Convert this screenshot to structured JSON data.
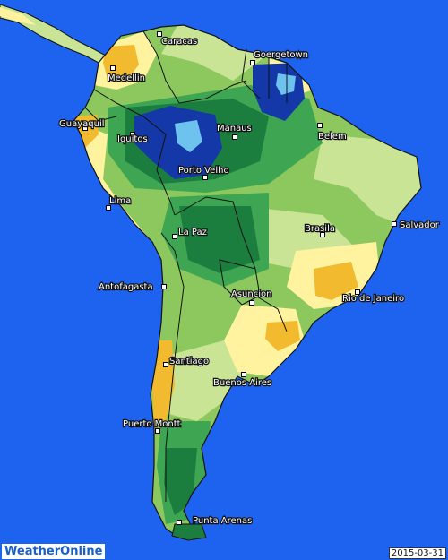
{
  "map": {
    "colors": {
      "ocean": "#1e63f0",
      "very_dry": "#f2bb2f",
      "dry": "#fff3a0",
      "normal_light": "#c8e494",
      "normal": "#8cc85e",
      "wet": "#3ea652",
      "very_wet": "#1b7e3f",
      "extreme_wet": "#1438a8",
      "extreme_wet_core": "#6ec2ee"
    },
    "cities": [
      {
        "id": "caracas",
        "name": "Caracas"
      },
      {
        "id": "medellin",
        "name": "Medellin"
      },
      {
        "id": "goergetown",
        "name": "Goergetown"
      },
      {
        "id": "guayaquil",
        "name": "Guayaquil"
      },
      {
        "id": "iquitos",
        "name": "Iquitos"
      },
      {
        "id": "manaus",
        "name": "Manaus"
      },
      {
        "id": "belem",
        "name": "Belem"
      },
      {
        "id": "porto-velho",
        "name": "Porto Velho"
      },
      {
        "id": "lima",
        "name": "Lima"
      },
      {
        "id": "salvador",
        "name": "Salvador"
      },
      {
        "id": "brasila",
        "name": "Brasila"
      },
      {
        "id": "la-paz",
        "name": "La Paz"
      },
      {
        "id": "antofagasta",
        "name": "Antofagasta"
      },
      {
        "id": "asuncion",
        "name": "Asuncion"
      },
      {
        "id": "rio-de-janeiro",
        "name": "Rio de Janeiro"
      },
      {
        "id": "santiago",
        "name": "Santiago"
      },
      {
        "id": "buenos-aires",
        "name": "Buenos Aires"
      },
      {
        "id": "puerto-montt",
        "name": "Puerto Montt"
      },
      {
        "id": "punta-arenas",
        "name": "Punta Arenas"
      }
    ]
  },
  "footer": {
    "brand_left": "Weather",
    "brand_right": "Online",
    "date": "2015-03-31"
  }
}
